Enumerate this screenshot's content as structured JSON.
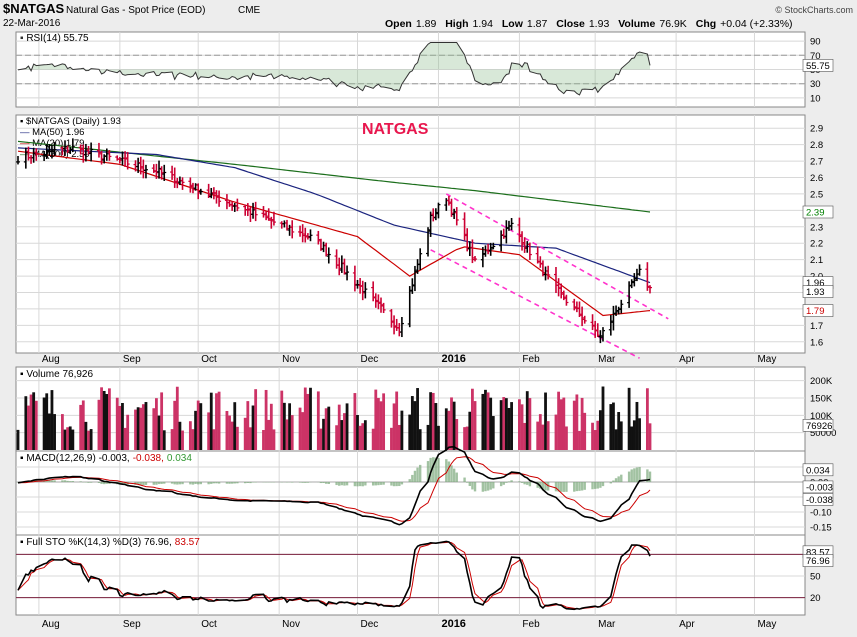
{
  "header": {
    "symbol": "$NATGAS",
    "name": "Natural Gas - Spot Price (EOD)",
    "exchange": "CME",
    "date": "22-Mar-2016",
    "copyright": "© StockCharts.com",
    "quote": {
      "open_label": "Open",
      "open": "1.89",
      "high_label": "High",
      "high": "1.94",
      "low_label": "Low",
      "low": "1.87",
      "close_label": "Close",
      "close": "1.93",
      "volume_label": "Volume",
      "volume": "76.9K",
      "chg_label": "Chg",
      "chg": "+0.04 (+2.33%)"
    }
  },
  "annotation": "NATGAS",
  "colors": {
    "up": "#000000",
    "down": "#cc0033",
    "ma50": "#1a237e",
    "ma20": "#cc0000",
    "ma200": "#1b6e1b",
    "channel": "#ff33cc",
    "green_tag": "#008000",
    "red_tag": "#cc0000",
    "panel_bg": "#ffffff",
    "frame": "#808080",
    "outer": "#e8e8e8"
  },
  "x_axis": {
    "labels": [
      "Aug",
      "Sep",
      "Oct",
      "Nov",
      "Dec",
      "2016",
      "Feb",
      "Mar",
      "Apr",
      "May"
    ]
  },
  "panels": {
    "rsi": {
      "title": "RSI(14) 55.75",
      "ticks": [
        "90",
        "70",
        "50",
        "30",
        "10"
      ],
      "value_tag": "55.75",
      "levels": [
        70,
        30
      ]
    },
    "price": {
      "legend": {
        "symbol": "$NATGAS (Daily) 1.93",
        "ma50": "MA(50) 1.96",
        "ma20": "MA(20) 1.79",
        "ma200": "MA(200) 2.39"
      },
      "ticks": [
        "2.9",
        "2.8",
        "2.7",
        "2.6",
        "2.5",
        "2.4",
        "2.3",
        "2.2",
        "2.1",
        "2.0",
        "1.9",
        "1.8",
        "1.7",
        "1.6"
      ],
      "tags": {
        "ma200": "2.39",
        "ma50": "1.96",
        "close": "1.93",
        "ma20": "1.79"
      }
    },
    "volume": {
      "title": "Volume 76,926",
      "ticks": [
        "200K",
        "150K",
        "100K",
        "50000"
      ],
      "value_tag": "76926"
    },
    "macd": {
      "title_main": "MACD(12,26,9) -0.003,",
      "title_signal": "-0.038,",
      "title_hist": "0.034",
      "ticks": [
        "0.05",
        "0.00",
        "-0.05",
        "-0.10",
        "-0.15"
      ],
      "tags": {
        "hist": "0.034",
        "macd": "-0.003",
        "signal": "-0.038"
      }
    },
    "sto": {
      "title_main": "Full STO %K(14,3) %D(3) 76.96,",
      "title_d": "83.57",
      "ticks": [
        "80",
        "50",
        "20"
      ],
      "tags": {
        "d": "83.57",
        "k": "76.96"
      }
    }
  },
  "chart_data": {
    "type": "bar",
    "title": "$NATGAS (Daily)",
    "x_range": [
      "2015-07-24",
      "2016-03-22"
    ],
    "y_range": [
      1.55,
      2.95
    ],
    "key_points": [
      {
        "date": "2015-07-24",
        "close": 2.72
      },
      {
        "date": "2015-08-14",
        "close": 2.78
      },
      {
        "date": "2015-09-15",
        "close": 2.64
      },
      {
        "date": "2015-10-15",
        "close": 2.43
      },
      {
        "date": "2015-11-15",
        "close": 2.22
      },
      {
        "date": "2015-12-17",
        "close": 1.68
      },
      {
        "date": "2015-12-29",
        "close": 2.35
      },
      {
        "date": "2016-01-04",
        "close": 2.48
      },
      {
        "date": "2016-01-15",
        "close": 2.08
      },
      {
        "date": "2016-01-29",
        "close": 2.31
      },
      {
        "date": "2016-02-15",
        "close": 1.92
      },
      {
        "date": "2016-03-03",
        "close": 1.63
      },
      {
        "date": "2016-03-18",
        "close": 2.02
      },
      {
        "date": "2016-03-22",
        "close": 1.93
      }
    ],
    "ma200_points": [
      {
        "date": "2015-07-24",
        "value": 2.82
      },
      {
        "date": "2015-10-15",
        "value": 2.68
      },
      {
        "date": "2015-12-15",
        "value": 2.57
      },
      {
        "date": "2016-01-15",
        "value": 2.52
      },
      {
        "date": "2016-03-22",
        "value": 2.39
      }
    ],
    "ma50_points": [
      {
        "date": "2015-07-24",
        "value": 2.78
      },
      {
        "date": "2015-09-15",
        "value": 2.74
      },
      {
        "date": "2015-10-15",
        "value": 2.66
      },
      {
        "date": "2015-11-15",
        "value": 2.5
      },
      {
        "date": "2015-12-15",
        "value": 2.31
      },
      {
        "date": "2016-01-15",
        "value": 2.2
      },
      {
        "date": "2016-02-15",
        "value": 2.17
      },
      {
        "date": "2016-03-22",
        "value": 1.96
      }
    ],
    "ma20_points": [
      {
        "date": "2015-07-24",
        "value": 2.76
      },
      {
        "date": "2015-09-01",
        "value": 2.68
      },
      {
        "date": "2015-10-15",
        "value": 2.45
      },
      {
        "date": "2015-12-01",
        "value": 2.24
      },
      {
        "date": "2015-12-21",
        "value": 2.0
      },
      {
        "date": "2016-01-10",
        "value": 2.18
      },
      {
        "date": "2016-02-01",
        "value": 2.13
      },
      {
        "date": "2016-03-04",
        "value": 1.76
      },
      {
        "date": "2016-03-22",
        "value": 1.79
      }
    ]
  }
}
